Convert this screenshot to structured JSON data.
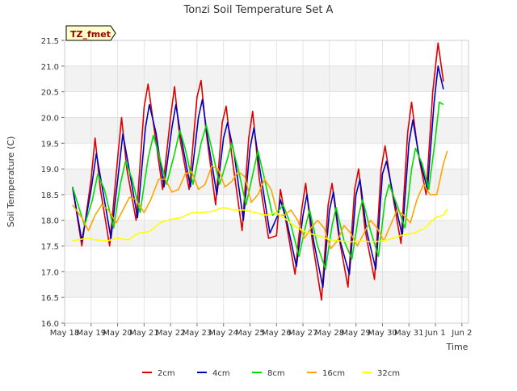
{
  "chart_data": {
    "type": "line",
    "title": "Tonzi Soil Temperature Set A",
    "xlabel": "Time",
    "ylabel": "Soil Temperature (C)",
    "site_badge": "TZ_fmet",
    "ylim": [
      16.0,
      21.5
    ],
    "yticks": [
      "16.0",
      "16.5",
      "17.0",
      "17.5",
      "18.0",
      "18.5",
      "19.0",
      "19.5",
      "20.0",
      "20.5",
      "21.0",
      "21.5"
    ],
    "xlim": [
      0,
      15.25
    ],
    "xticks": [
      {
        "v": 0,
        "label": "May 18"
      },
      {
        "v": 1,
        "label": "May 19"
      },
      {
        "v": 2,
        "label": "May 20"
      },
      {
        "v": 3,
        "label": "May 21"
      },
      {
        "v": 4,
        "label": "May 22"
      },
      {
        "v": 5,
        "label": "May 23"
      },
      {
        "v": 6,
        "label": "May 24"
      },
      {
        "v": 7,
        "label": "May 25"
      },
      {
        "v": 8,
        "label": "May 26"
      },
      {
        "v": 9,
        "label": "May 27"
      },
      {
        "v": 10,
        "label": "May 28"
      },
      {
        "v": 11,
        "label": "May 29"
      },
      {
        "v": 12,
        "label": "May 30"
      },
      {
        "v": 13,
        "label": "May 31"
      },
      {
        "v": 14,
        "label": "Jun 1"
      },
      {
        "v": 15,
        "label": "Jun 2"
      }
    ],
    "grid": true,
    "legend_position": "bottom",
    "series": [
      {
        "name": "2cm",
        "color": "#dd0000",
        "points": [
          [
            0.3,
            18.65
          ],
          [
            0.65,
            17.5
          ],
          [
            1.0,
            18.8
          ],
          [
            1.15,
            19.6
          ],
          [
            1.35,
            18.6
          ],
          [
            1.7,
            17.5
          ],
          [
            2.0,
            19.2
          ],
          [
            2.15,
            20.0
          ],
          [
            2.35,
            19.0
          ],
          [
            2.7,
            18.0
          ],
          [
            3.0,
            20.2
          ],
          [
            3.15,
            20.65
          ],
          [
            3.35,
            19.9
          ],
          [
            3.7,
            18.6
          ],
          [
            4.0,
            20.0
          ],
          [
            4.15,
            20.6
          ],
          [
            4.35,
            19.6
          ],
          [
            4.7,
            18.6
          ],
          [
            5.0,
            20.4
          ],
          [
            5.15,
            20.72
          ],
          [
            5.35,
            19.7
          ],
          [
            5.7,
            18.3
          ],
          [
            5.95,
            19.9
          ],
          [
            6.1,
            20.22
          ],
          [
            6.3,
            19.3
          ],
          [
            6.7,
            17.8
          ],
          [
            6.95,
            19.6
          ],
          [
            7.1,
            20.12
          ],
          [
            7.35,
            18.8
          ],
          [
            7.7,
            17.65
          ],
          [
            8.0,
            17.7
          ],
          [
            8.15,
            18.6
          ],
          [
            8.35,
            18.0
          ],
          [
            8.7,
            16.95
          ],
          [
            8.95,
            18.2
          ],
          [
            9.1,
            18.72
          ],
          [
            9.35,
            17.6
          ],
          [
            9.7,
            16.45
          ],
          [
            9.95,
            18.3
          ],
          [
            10.1,
            18.72
          ],
          [
            10.35,
            17.7
          ],
          [
            10.7,
            16.7
          ],
          [
            10.95,
            18.6
          ],
          [
            11.1,
            19.0
          ],
          [
            11.35,
            17.8
          ],
          [
            11.7,
            16.85
          ],
          [
            11.95,
            19.0
          ],
          [
            12.1,
            19.45
          ],
          [
            12.35,
            18.6
          ],
          [
            12.7,
            17.55
          ],
          [
            12.95,
            19.7
          ],
          [
            13.1,
            20.3
          ],
          [
            13.35,
            19.3
          ],
          [
            13.65,
            18.5
          ],
          [
            13.9,
            20.5
          ],
          [
            14.1,
            21.45
          ],
          [
            14.3,
            20.7
          ]
        ]
      },
      {
        "name": "4cm",
        "color": "#0000bb",
        "points": [
          [
            0.3,
            18.65
          ],
          [
            0.65,
            17.6
          ],
          [
            1.0,
            18.6
          ],
          [
            1.2,
            19.3
          ],
          [
            1.4,
            18.7
          ],
          [
            1.75,
            17.65
          ],
          [
            2.05,
            19.0
          ],
          [
            2.2,
            19.68
          ],
          [
            2.4,
            19.1
          ],
          [
            2.75,
            18.05
          ],
          [
            3.05,
            19.8
          ],
          [
            3.2,
            20.25
          ],
          [
            3.45,
            19.7
          ],
          [
            3.75,
            18.65
          ],
          [
            4.05,
            19.8
          ],
          [
            4.2,
            20.25
          ],
          [
            4.4,
            19.6
          ],
          [
            4.75,
            18.65
          ],
          [
            5.05,
            20.0
          ],
          [
            5.2,
            20.35
          ],
          [
            5.4,
            19.6
          ],
          [
            5.75,
            18.5
          ],
          [
            6.0,
            19.6
          ],
          [
            6.15,
            19.9
          ],
          [
            6.4,
            19.3
          ],
          [
            6.75,
            18.0
          ],
          [
            7.0,
            19.4
          ],
          [
            7.15,
            19.8
          ],
          [
            7.4,
            18.9
          ],
          [
            7.75,
            17.75
          ],
          [
            8.05,
            18.1
          ],
          [
            8.15,
            18.4
          ],
          [
            8.4,
            17.95
          ],
          [
            8.75,
            17.1
          ],
          [
            9.0,
            18.1
          ],
          [
            9.15,
            18.5
          ],
          [
            9.4,
            17.6
          ],
          [
            9.75,
            16.7
          ],
          [
            10.0,
            18.2
          ],
          [
            10.15,
            18.55
          ],
          [
            10.4,
            17.6
          ],
          [
            10.75,
            16.95
          ],
          [
            11.0,
            18.5
          ],
          [
            11.15,
            18.8
          ],
          [
            11.4,
            17.8
          ],
          [
            11.75,
            17.05
          ],
          [
            12.0,
            18.9
          ],
          [
            12.15,
            19.15
          ],
          [
            12.4,
            18.5
          ],
          [
            12.75,
            17.7
          ],
          [
            13.0,
            19.5
          ],
          [
            13.15,
            19.95
          ],
          [
            13.4,
            19.2
          ],
          [
            13.7,
            18.6
          ],
          [
            13.95,
            20.3
          ],
          [
            14.1,
            21.0
          ],
          [
            14.3,
            20.55
          ]
        ]
      },
      {
        "name": "8cm",
        "color": "#00dd00",
        "points": [
          [
            0.3,
            18.65
          ],
          [
            0.75,
            17.9
          ],
          [
            1.05,
            18.4
          ],
          [
            1.25,
            18.9
          ],
          [
            1.5,
            18.6
          ],
          [
            1.85,
            17.85
          ],
          [
            2.1,
            18.7
          ],
          [
            2.3,
            19.15
          ],
          [
            2.55,
            18.8
          ],
          [
            2.85,
            18.15
          ],
          [
            3.15,
            19.2
          ],
          [
            3.35,
            19.65
          ],
          [
            3.55,
            19.3
          ],
          [
            3.85,
            18.7
          ],
          [
            4.15,
            19.3
          ],
          [
            4.35,
            19.75
          ],
          [
            4.55,
            19.4
          ],
          [
            4.85,
            18.7
          ],
          [
            5.15,
            19.5
          ],
          [
            5.35,
            19.85
          ],
          [
            5.55,
            19.4
          ],
          [
            5.85,
            18.7
          ],
          [
            6.15,
            19.2
          ],
          [
            6.3,
            19.5
          ],
          [
            6.55,
            19.0
          ],
          [
            6.85,
            18.3
          ],
          [
            7.15,
            19.0
          ],
          [
            7.3,
            19.35
          ],
          [
            7.55,
            18.8
          ],
          [
            7.85,
            18.1
          ],
          [
            8.1,
            18.2
          ],
          [
            8.25,
            18.3
          ],
          [
            8.55,
            17.9
          ],
          [
            8.85,
            17.3
          ],
          [
            9.1,
            17.9
          ],
          [
            9.25,
            18.2
          ],
          [
            9.55,
            17.5
          ],
          [
            9.85,
            17.05
          ],
          [
            10.1,
            17.9
          ],
          [
            10.25,
            18.25
          ],
          [
            10.55,
            17.6
          ],
          [
            10.85,
            17.25
          ],
          [
            11.1,
            18.1
          ],
          [
            11.25,
            18.4
          ],
          [
            11.55,
            17.8
          ],
          [
            11.85,
            17.3
          ],
          [
            12.1,
            18.4
          ],
          [
            12.25,
            18.7
          ],
          [
            12.55,
            18.3
          ],
          [
            12.85,
            17.85
          ],
          [
            13.1,
            19.0
          ],
          [
            13.25,
            19.4
          ],
          [
            13.5,
            19.1
          ],
          [
            13.75,
            18.6
          ],
          [
            14.0,
            19.6
          ],
          [
            14.15,
            20.3
          ],
          [
            14.3,
            20.25
          ]
        ]
      },
      {
        "name": "16cm",
        "color": "#ffa500",
        "points": [
          [
            0.3,
            18.3
          ],
          [
            0.65,
            18.05
          ],
          [
            0.9,
            17.8
          ],
          [
            1.15,
            18.1
          ],
          [
            1.4,
            18.3
          ],
          [
            1.65,
            18.2
          ],
          [
            1.95,
            17.95
          ],
          [
            2.2,
            18.2
          ],
          [
            2.45,
            18.45
          ],
          [
            2.7,
            18.4
          ],
          [
            3.0,
            18.15
          ],
          [
            3.25,
            18.4
          ],
          [
            3.55,
            18.8
          ],
          [
            3.8,
            18.8
          ],
          [
            4.05,
            18.55
          ],
          [
            4.3,
            18.6
          ],
          [
            4.55,
            18.9
          ],
          [
            4.8,
            18.95
          ],
          [
            5.05,
            18.6
          ],
          [
            5.3,
            18.7
          ],
          [
            5.55,
            19.05
          ],
          [
            5.8,
            19.0
          ],
          [
            6.05,
            18.65
          ],
          [
            6.3,
            18.75
          ],
          [
            6.55,
            18.95
          ],
          [
            6.8,
            18.85
          ],
          [
            7.05,
            18.35
          ],
          [
            7.3,
            18.5
          ],
          [
            7.55,
            18.8
          ],
          [
            7.8,
            18.6
          ],
          [
            8.05,
            18.1
          ],
          [
            8.3,
            18.1
          ],
          [
            8.55,
            18.2
          ],
          [
            8.8,
            18.0
          ],
          [
            9.05,
            17.65
          ],
          [
            9.3,
            17.85
          ],
          [
            9.55,
            18.0
          ],
          [
            9.8,
            17.85
          ],
          [
            10.05,
            17.45
          ],
          [
            10.3,
            17.6
          ],
          [
            10.55,
            17.9
          ],
          [
            10.8,
            17.75
          ],
          [
            11.05,
            17.5
          ],
          [
            11.3,
            17.75
          ],
          [
            11.55,
            18.0
          ],
          [
            11.8,
            17.85
          ],
          [
            12.05,
            17.6
          ],
          [
            12.3,
            17.9
          ],
          [
            12.55,
            18.2
          ],
          [
            12.8,
            18.1
          ],
          [
            13.05,
            17.95
          ],
          [
            13.3,
            18.4
          ],
          [
            13.55,
            18.7
          ],
          [
            13.8,
            18.5
          ],
          [
            14.05,
            18.5
          ],
          [
            14.3,
            19.1
          ],
          [
            14.45,
            19.35
          ]
        ]
      },
      {
        "name": "32cm",
        "color": "#ffff00",
        "points": [
          [
            0.3,
            17.6
          ],
          [
            0.8,
            17.65
          ],
          [
            1.2,
            17.62
          ],
          [
            1.6,
            17.6
          ],
          [
            2.0,
            17.65
          ],
          [
            2.4,
            17.62
          ],
          [
            2.8,
            17.75
          ],
          [
            3.2,
            17.78
          ],
          [
            3.6,
            17.95
          ],
          [
            4.0,
            18.02
          ],
          [
            4.4,
            18.05
          ],
          [
            4.8,
            18.15
          ],
          [
            5.2,
            18.15
          ],
          [
            5.6,
            18.18
          ],
          [
            6.0,
            18.25
          ],
          [
            6.4,
            18.2
          ],
          [
            6.8,
            18.2
          ],
          [
            7.2,
            18.15
          ],
          [
            7.6,
            18.1
          ],
          [
            8.0,
            18.15
          ],
          [
            8.4,
            18.0
          ],
          [
            8.8,
            17.85
          ],
          [
            9.2,
            17.75
          ],
          [
            9.6,
            17.7
          ],
          [
            10.0,
            17.62
          ],
          [
            10.4,
            17.6
          ],
          [
            10.8,
            17.58
          ],
          [
            11.2,
            17.6
          ],
          [
            11.6,
            17.58
          ],
          [
            12.0,
            17.6
          ],
          [
            12.4,
            17.65
          ],
          [
            12.8,
            17.72
          ],
          [
            13.2,
            17.75
          ],
          [
            13.6,
            17.85
          ],
          [
            14.0,
            18.05
          ],
          [
            14.3,
            18.1
          ],
          [
            14.45,
            18.22
          ]
        ]
      }
    ]
  }
}
